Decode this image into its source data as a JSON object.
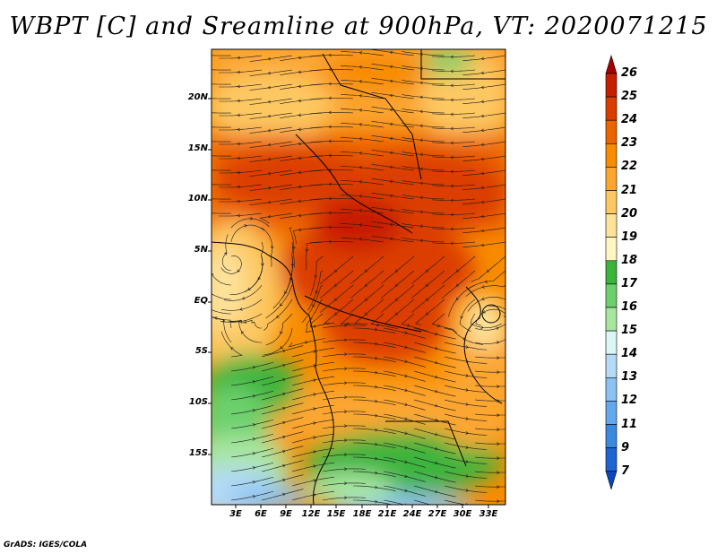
{
  "title": "WBPT [C] and Sreamline at 900hPa, VT: 2020071215",
  "credit": "GrADS: IGES/COLA",
  "map": {
    "variable": "WBPT [C]",
    "level": "900hPa",
    "valid_time": "2020071215",
    "lat_labels": [
      "20N",
      "15N",
      "10N",
      "5N",
      "EQ",
      "5S",
      "10S",
      "15S"
    ],
    "lon_labels": [
      "3E",
      "6E",
      "9E",
      "12E",
      "15E",
      "18E",
      "21E",
      "24E",
      "27E",
      "30E",
      "33E"
    ]
  },
  "colorbar": {
    "labels": [
      "26",
      "25",
      "24",
      "23",
      "22",
      "21",
      "20",
      "19",
      "18",
      "17",
      "16",
      "15",
      "14",
      "13",
      "12",
      "11",
      "9",
      "7"
    ],
    "colors": [
      "#a80000",
      "#c81e00",
      "#dc3c00",
      "#ec6400",
      "#f88c00",
      "#fca630",
      "#fdc862",
      "#fde29a",
      "#fff6c4",
      "#3cb43c",
      "#6cd06c",
      "#a8e6a0",
      "#dcf6f6",
      "#b4daf6",
      "#8cc2f2",
      "#64a8ec",
      "#3c8ae0",
      "#1e64d2",
      "#0a46be"
    ]
  }
}
